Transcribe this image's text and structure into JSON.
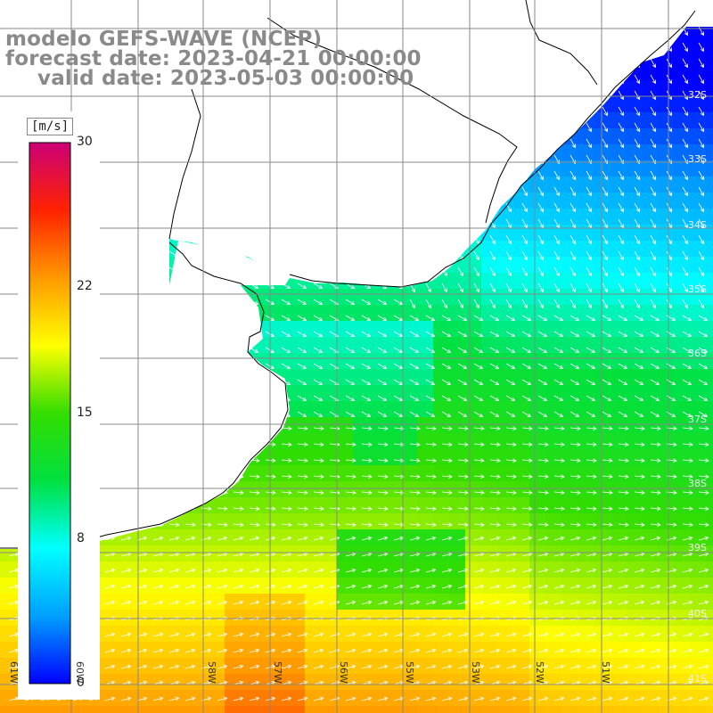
{
  "title": {
    "line1": "modelo GEFS-WAVE (NCEP)",
    "line2": "forecast date: 2023-04-21 00:00:00",
    "line3": "valid date: 2023-05-03 00:00:00"
  },
  "colorbar": {
    "units": "[m/s]",
    "ticks": [
      {
        "label": "30",
        "value": 30
      },
      {
        "label": "22",
        "value": 22
      },
      {
        "label": "15",
        "value": 15
      },
      {
        "label": "8",
        "value": 8
      },
      {
        "label": "0",
        "value": 0
      }
    ],
    "colors": [
      "#0000ff",
      "#00a0ff",
      "#00ffff",
      "#00e040",
      "#33dd00",
      "#ffff00",
      "#ff9900",
      "#ff2200",
      "#cc0077"
    ]
  },
  "map": {
    "lat_labels": [
      "32S",
      "33S",
      "34S",
      "35S",
      "36S",
      "37S",
      "38S",
      "39S",
      "40S",
      "41S"
    ],
    "lon_labels": [
      "61W",
      "60W",
      "58W",
      "57W",
      "56W",
      "55W",
      "53W",
      "52W",
      "51W"
    ],
    "land_color": "#ffffff",
    "grid_color": "#888888",
    "arrow_color": "#ffffff",
    "field_units": "m/s"
  }
}
